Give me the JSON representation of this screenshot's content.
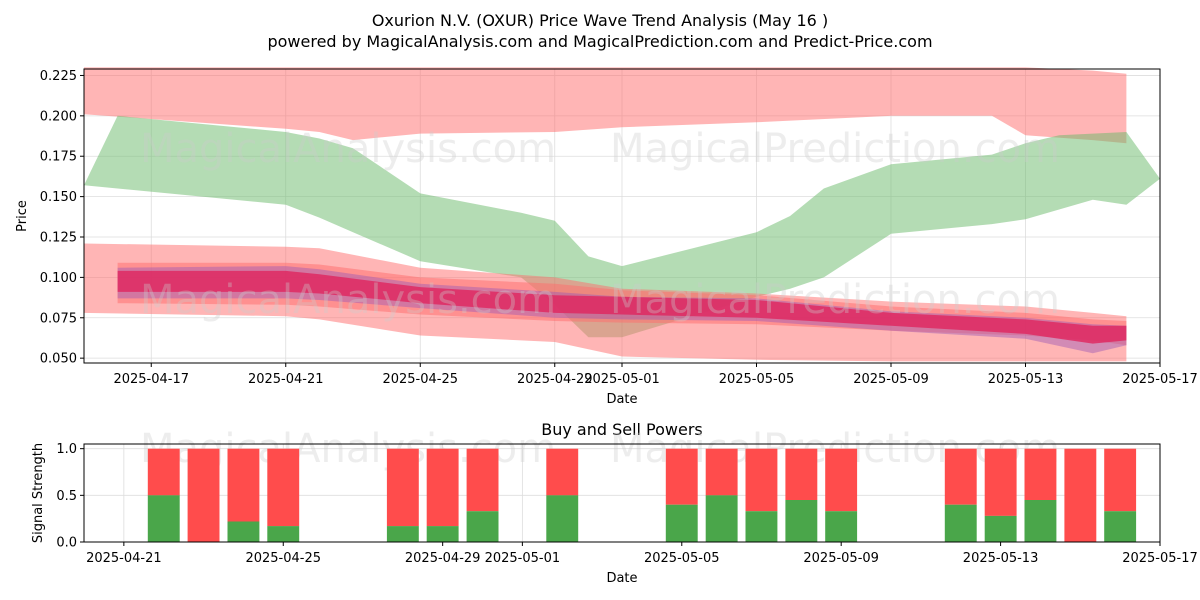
{
  "header": {
    "title": "Oxurion N.V. (OXUR) Price Wave Trend Analysis (May 16 )",
    "subtitle": "powered by MagicalAnalysis.com and MagicalPrediction.com and Predict-Price.com"
  },
  "watermarks": [
    "MagicalAnalysis.com",
    "MagicalPrediction.com"
  ],
  "colors": {
    "red_band": "#ff6b6b",
    "green_band": "#6ab96a",
    "core": "#e0245e",
    "core_purple": "#9b59b6",
    "buy": "#4aa64a",
    "sell": "#ff4c4c"
  },
  "chart_data": [
    {
      "type": "area",
      "xlabel": "Date",
      "ylabel": "Price",
      "ylim": [
        0.047,
        0.229
      ],
      "xlim": [
        "2025-04-15",
        "2025-05-17"
      ],
      "grid": true,
      "xticks": [
        "2025-04-17",
        "2025-04-21",
        "2025-04-25",
        "2025-04-29",
        "2025-05-01",
        "2025-05-05",
        "2025-05-09",
        "2025-05-13",
        "2025-05-17"
      ],
      "yticks": [
        "0.050",
        "0.075",
        "0.100",
        "0.125",
        "0.150",
        "0.175",
        "0.200",
        "0.225"
      ],
      "bands": [
        {
          "color": "red",
          "x": [
            "2025-04-15",
            "2025-04-21",
            "2025-04-22",
            "2025-04-23",
            "2025-04-25",
            "2025-04-29",
            "2025-05-01",
            "2025-05-05",
            "2025-05-09",
            "2025-05-12",
            "2025-05-13",
            "2025-05-15",
            "2025-05-16"
          ],
          "upper": [
            0.23,
            0.23,
            0.23,
            0.23,
            0.23,
            0.23,
            0.23,
            0.23,
            0.23,
            0.23,
            0.23,
            0.228,
            0.226
          ],
          "lower": [
            0.201,
            0.192,
            0.19,
            0.185,
            0.189,
            0.19,
            0.193,
            0.196,
            0.2,
            0.2,
            0.188,
            0.185,
            0.183
          ]
        },
        {
          "color": "green",
          "x": [
            "2025-04-15",
            "2025-04-16",
            "2025-04-21",
            "2025-04-22",
            "2025-04-23",
            "2025-04-25",
            "2025-04-28",
            "2025-04-29",
            "2025-04-30",
            "2025-05-01",
            "2025-05-05",
            "2025-05-06",
            "2025-05-07",
            "2025-05-09",
            "2025-05-12",
            "2025-05-13",
            "2025-05-14",
            "2025-05-15",
            "2025-05-16",
            "2025-05-17"
          ],
          "upper": [
            0.157,
            0.2,
            0.19,
            0.186,
            0.18,
            0.152,
            0.14,
            0.135,
            0.113,
            0.107,
            0.128,
            0.138,
            0.155,
            0.17,
            0.176,
            0.183,
            0.188,
            0.189,
            0.19,
            0.161
          ],
          "lower": [
            0.157,
            0.155,
            0.145,
            0.137,
            0.128,
            0.11,
            0.1,
            0.083,
            0.063,
            0.063,
            0.088,
            0.093,
            0.1,
            0.127,
            0.133,
            0.136,
            0.142,
            0.148,
            0.145,
            0.161
          ]
        },
        {
          "color": "red",
          "x": [
            "2025-04-15",
            "2025-04-21",
            "2025-04-22",
            "2025-04-25",
            "2025-04-29",
            "2025-05-01",
            "2025-05-05",
            "2025-05-09",
            "2025-05-13",
            "2025-05-15",
            "2025-05-16"
          ],
          "upper": [
            0.121,
            0.119,
            0.118,
            0.106,
            0.1,
            0.093,
            0.09,
            0.085,
            0.082,
            0.078,
            0.076
          ],
          "lower": [
            0.078,
            0.076,
            0.074,
            0.064,
            0.06,
            0.051,
            0.049,
            0.048,
            0.048,
            0.048,
            0.048
          ]
        },
        {
          "color": "red",
          "x": [
            "2025-04-16",
            "2025-04-21",
            "2025-04-22",
            "2025-04-25",
            "2025-04-29",
            "2025-05-01",
            "2025-05-05",
            "2025-05-09",
            "2025-05-13",
            "2025-05-15",
            "2025-05-16"
          ],
          "upper": [
            0.109,
            0.109,
            0.108,
            0.1,
            0.096,
            0.092,
            0.089,
            0.082,
            0.078,
            0.074,
            0.073
          ],
          "lower": [
            0.084,
            0.083,
            0.082,
            0.077,
            0.073,
            0.072,
            0.071,
            0.067,
            0.064,
            0.061,
            0.058
          ]
        },
        {
          "color": "purple",
          "x": [
            "2025-04-16",
            "2025-04-21",
            "2025-04-22",
            "2025-04-25",
            "2025-04-29",
            "2025-05-01",
            "2025-05-05",
            "2025-05-09",
            "2025-05-13",
            "2025-05-15",
            "2025-05-16"
          ],
          "upper": [
            0.106,
            0.107,
            0.105,
            0.096,
            0.091,
            0.088,
            0.087,
            0.079,
            0.075,
            0.071,
            0.07
          ],
          "lower": [
            0.087,
            0.087,
            0.086,
            0.081,
            0.075,
            0.074,
            0.073,
            0.067,
            0.062,
            0.053,
            0.058
          ]
        },
        {
          "color": "core",
          "x": [
            "2025-04-16",
            "2025-04-21",
            "2025-04-22",
            "2025-04-25",
            "2025-04-29",
            "2025-05-01",
            "2025-05-05",
            "2025-05-09",
            "2025-05-13",
            "2025-05-15",
            "2025-05-16"
          ],
          "upper": [
            0.104,
            0.104,
            0.102,
            0.094,
            0.089,
            0.088,
            0.086,
            0.078,
            0.074,
            0.07,
            0.07
          ],
          "lower": [
            0.091,
            0.091,
            0.09,
            0.084,
            0.078,
            0.077,
            0.075,
            0.07,
            0.065,
            0.059,
            0.061
          ]
        }
      ]
    },
    {
      "type": "bar",
      "title": "Buy and Sell Powers",
      "xlabel": "Date",
      "ylabel": "Signal Strength",
      "ylim": [
        0,
        1.05
      ],
      "xlim": [
        "2025-04-20",
        "2025-05-17"
      ],
      "grid": true,
      "xticks": [
        "2025-04-21",
        "2025-04-25",
        "2025-04-29",
        "2025-05-01",
        "2025-05-05",
        "2025-05-09",
        "2025-05-13",
        "2025-05-17"
      ],
      "yticks": [
        "0.0",
        "0.5",
        "1.0"
      ],
      "series": [
        {
          "name": "",
          "dates": [
            "2025-04-22",
            "2025-04-23",
            "2025-04-24",
            "2025-04-25",
            "2025-04-28",
            "2025-04-29",
            "2025-04-30",
            "2025-05-02",
            "2025-05-05",
            "2025-05-06",
            "2025-05-07",
            "2025-05-08",
            "2025-05-09",
            "2025-05-12",
            "2025-05-13",
            "2025-05-14",
            "2025-05-15",
            "2025-05-16"
          ],
          "buy": [
            0.5,
            0.0,
            0.22,
            0.17,
            0.17,
            0.17,
            0.33,
            0.5,
            0.4,
            0.5,
            0.33,
            0.45,
            0.33,
            0.4,
            0.28,
            0.45,
            0.0,
            0.33
          ]
        }
      ]
    }
  ]
}
